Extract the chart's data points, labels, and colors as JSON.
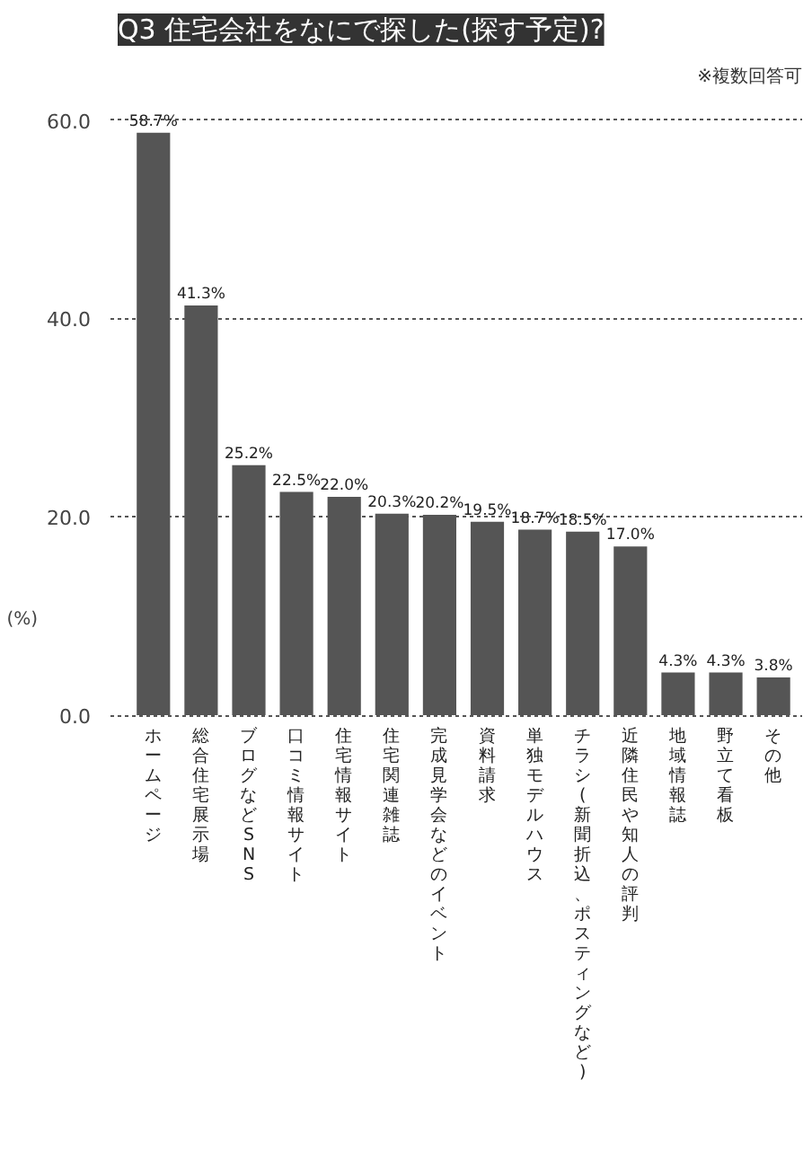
{
  "chart_data": {
    "type": "bar",
    "title": "Q3 住宅会社をなにで探した(探す予定)?",
    "subtitle": "※複数回答可",
    "ylabel": "(%)",
    "categories": [
      "ホームページ",
      "総合住宅展示場",
      "ブログなどSNS",
      "口コミ情報サイト",
      "住宅情報サイト",
      "住宅関連雑誌",
      "完成見学会などのイベント",
      "資料請求",
      "単独モデルハウス",
      "チラシ(新聞折込、ポスティングなど)",
      "近隣住民や知人の評判",
      "地域情報誌",
      "野立て看板",
      "その他"
    ],
    "values": [
      58.7,
      41.3,
      25.2,
      22.5,
      22.0,
      20.3,
      20.2,
      19.5,
      18.7,
      18.5,
      17.0,
      4.3,
      4.3,
      3.8
    ],
    "value_labels": [
      "58.7%",
      "41.3%",
      "25.2%",
      "22.5%",
      "22.0%",
      "20.3%",
      "20.2%",
      "19.5%",
      "18.7%",
      "18.5%",
      "17.0%",
      "4.3%",
      "4.3%",
      "3.8%"
    ],
    "color": "#555555",
    "ylim": [
      0,
      60
    ],
    "yticks": [
      {
        "value": 0,
        "label": "0.0"
      },
      {
        "value": 20,
        "label": "20.0"
      },
      {
        "value": 40,
        "label": "40.0"
      },
      {
        "value": 60,
        "label": "60.0"
      }
    ],
    "grid": "y"
  }
}
